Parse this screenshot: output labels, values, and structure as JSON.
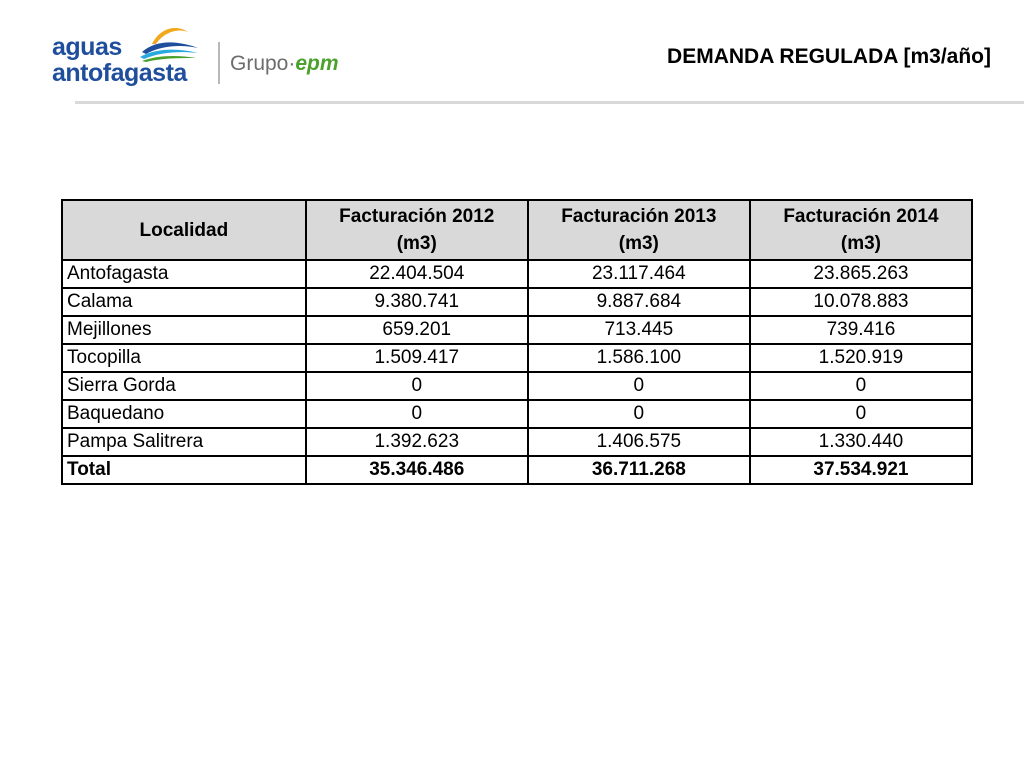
{
  "logo": {
    "line1": "aguas",
    "line2": "antofagasta",
    "group_prefix": "Grupo·",
    "group_brand": "epm",
    "wave_colors": [
      "#f2a81d",
      "#1f4e9c",
      "#29a9e0",
      "#4aa12c"
    ]
  },
  "title": "DEMANDA REGULADA [m3/año]",
  "table": {
    "headers": [
      {
        "line1": "Localidad",
        "line2": ""
      },
      {
        "line1": "Facturación 2012",
        "line2": "(m3)"
      },
      {
        "line1": "Facturación 2013",
        "line2": "(m3)"
      },
      {
        "line1": "Facturación 2014",
        "line2": "(m3)"
      }
    ],
    "rows": [
      {
        "localidad": "Antofagasta",
        "y2012": "22.404.504",
        "y2013": "23.117.464",
        "y2014": "23.865.263"
      },
      {
        "localidad": "Calama",
        "y2012": "9.380.741",
        "y2013": "9.887.684",
        "y2014": "10.078.883"
      },
      {
        "localidad": "Mejillones",
        "y2012": "659.201",
        "y2013": "713.445",
        "y2014": "739.416"
      },
      {
        "localidad": "Tocopilla",
        "y2012": "1.509.417",
        "y2013": "1.586.100",
        "y2014": "1.520.919"
      },
      {
        "localidad": "Sierra Gorda",
        "y2012": "0",
        "y2013": "0",
        "y2014": "0"
      },
      {
        "localidad": "Baquedano",
        "y2012": "0",
        "y2013": "0",
        "y2014": "0"
      },
      {
        "localidad": "Pampa Salitrera",
        "y2012": "1.392.623",
        "y2013": "1.406.575",
        "y2014": "1.330.440"
      }
    ],
    "total": {
      "localidad": "Total",
      "y2012": "35.346.486",
      "y2013": "36.711.268",
      "y2014": "37.534.921"
    },
    "header_bg": "#d9d9d9"
  }
}
